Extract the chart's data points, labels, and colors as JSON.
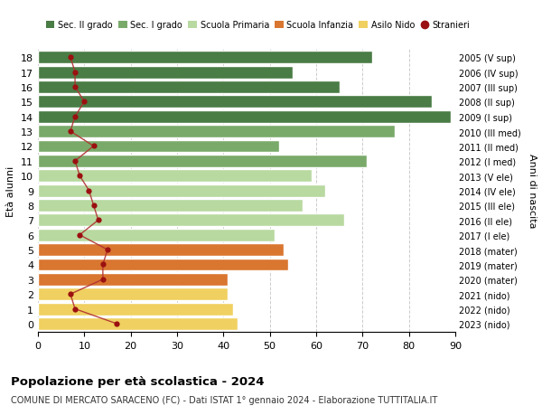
{
  "ages": [
    18,
    17,
    16,
    15,
    14,
    13,
    12,
    11,
    10,
    9,
    8,
    7,
    6,
    5,
    4,
    3,
    2,
    1,
    0
  ],
  "right_labels": [
    "2005 (V sup)",
    "2006 (IV sup)",
    "2007 (III sup)",
    "2008 (II sup)",
    "2009 (I sup)",
    "2010 (III med)",
    "2011 (II med)",
    "2012 (I med)",
    "2013 (V ele)",
    "2014 (IV ele)",
    "2015 (III ele)",
    "2016 (II ele)",
    "2017 (I ele)",
    "2018 (mater)",
    "2019 (mater)",
    "2020 (mater)",
    "2021 (nido)",
    "2022 (nido)",
    "2023 (nido)"
  ],
  "bar_values": [
    72,
    55,
    65,
    85,
    89,
    77,
    52,
    71,
    59,
    62,
    57,
    66,
    51,
    53,
    54,
    41,
    41,
    42,
    43
  ],
  "bar_colors": [
    "#4a7c45",
    "#4a7c45",
    "#4a7c45",
    "#4a7c45",
    "#4a7c45",
    "#7aaa6a",
    "#7aaa6a",
    "#7aaa6a",
    "#b8d9a0",
    "#b8d9a0",
    "#b8d9a0",
    "#b8d9a0",
    "#b8d9a0",
    "#d97630",
    "#d97630",
    "#d97630",
    "#f0d060",
    "#f0d060",
    "#f0d060"
  ],
  "stranieri_values": [
    7,
    8,
    8,
    10,
    8,
    7,
    12,
    8,
    9,
    11,
    12,
    13,
    9,
    15,
    14,
    14,
    7,
    8,
    17
  ],
  "title": "Popolazione per età scolastica - 2024",
  "subtitle": "COMUNE DI MERCATO SARACENO (FC) - Dati ISTAT 1° gennaio 2024 - Elaborazione TUTTITALIA.IT",
  "ylabel_left": "Età alunni",
  "ylabel_right": "Anni di nascita",
  "xlim": [
    0,
    90
  ],
  "xticks": [
    0,
    10,
    20,
    30,
    40,
    50,
    60,
    70,
    80,
    90
  ],
  "legend_labels": [
    "Sec. II grado",
    "Sec. I grado",
    "Scuola Primaria",
    "Scuola Infanzia",
    "Asilo Nido",
    "Stranieri"
  ],
  "legend_colors": [
    "#4a7c45",
    "#7aaa6a",
    "#b8d9a0",
    "#d97630",
    "#f0d060",
    "#9b1010"
  ],
  "bar_height": 0.85,
  "dot_color": "#9b1010",
  "line_color": "#b03030"
}
